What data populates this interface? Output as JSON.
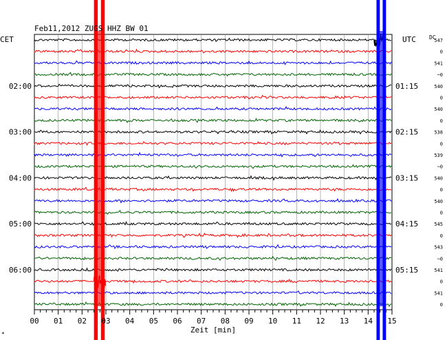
{
  "chart_data": {
    "type": "line",
    "title": "Feb11,2012   ZUGS HHZ BW 01",
    "left_label": "CET",
    "right_label": "UTC",
    "dc_label": "DC",
    "xlabel": "Zeit [min]",
    "xlim": [
      0,
      15
    ],
    "x_ticks": [
      "00",
      "01",
      "02",
      "03",
      "04",
      "05",
      "06",
      "07",
      "08",
      "09",
      "10",
      "11",
      "12",
      "13",
      "14",
      "15"
    ],
    "left_hour_labels": [
      {
        "trace": 4,
        "label": "02:00"
      },
      {
        "trace": 8,
        "label": "03:00"
      },
      {
        "trace": 12,
        "label": "04:00"
      },
      {
        "trace": 16,
        "label": "05:00"
      },
      {
        "trace": 20,
        "label": "06:00"
      }
    ],
    "right_hour_labels": [
      {
        "trace": 4,
        "label": "01:15"
      },
      {
        "trace": 8,
        "label": "02:15"
      },
      {
        "trace": 12,
        "label": "03:15"
      },
      {
        "trace": 16,
        "label": "04:15"
      },
      {
        "trace": 20,
        "label": "05:15"
      }
    ],
    "trace_colors": [
      "#000000",
      "#ff0000",
      "#0000ff",
      "#006400"
    ],
    "dc_values": [
      "547",
      "0",
      "541",
      "~0",
      "540",
      "0",
      "540",
      "0",
      "538",
      "0",
      "539",
      "~0",
      "540",
      "0",
      "540",
      "0",
      "545",
      "0",
      "543",
      "~0",
      "541",
      "0",
      "541",
      "0"
    ],
    "traces": 24,
    "events": [
      {
        "trace": 21,
        "start_min": 2.5,
        "end_min": 3.0,
        "amplitude": "large"
      },
      {
        "trace": 0,
        "start_min": 14.25,
        "end_min": 14.75,
        "amplitude": "large"
      }
    ],
    "clipped_columns": [
      {
        "color": "#ff0000",
        "start_min": 2.5,
        "end_min": 2.95
      },
      {
        "color": "#0000ff",
        "start_min": 14.35,
        "end_min": 14.75
      }
    ],
    "grid": true
  },
  "footer_mark": "*"
}
